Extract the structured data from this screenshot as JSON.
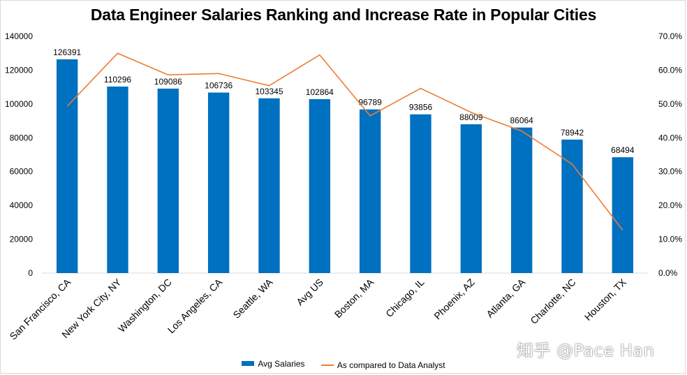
{
  "chart_data": {
    "type": "bar",
    "title": "Data Engineer Salaries Ranking and Increase Rate in Popular Cities",
    "categories": [
      "San Francisco, CA",
      "New York City, NY",
      "Washington, DC",
      "Los Angeles, CA",
      "Seattle, WA",
      "Avg US",
      "Boston, MA",
      "Chicago, IL",
      "Phoenix, AZ",
      "Atlanta, GA",
      "Charlotte, NC",
      "Houston, TX"
    ],
    "series": [
      {
        "name": "Avg Salaries",
        "type": "bar",
        "axis": "left",
        "color": "#0070C0",
        "values": [
          126391,
          110296,
          109086,
          106736,
          103345,
          102864,
          96789,
          93856,
          88009,
          86064,
          78942,
          68494
        ],
        "labels": [
          "126391",
          "110296",
          "109086",
          "106736",
          "103345",
          "102864",
          "96789",
          "93856",
          "88009",
          "86064",
          "78942",
          "68494"
        ]
      },
      {
        "name": "As compared to Data Analyst",
        "type": "line",
        "axis": "right",
        "color": "#ED7D31",
        "values": [
          0.493,
          0.65,
          0.586,
          0.59,
          0.554,
          0.645,
          0.465,
          0.546,
          0.475,
          0.42,
          0.322,
          0.127
        ]
      }
    ],
    "y_left": {
      "min": 0,
      "max": 140000,
      "step": 20000,
      "ticks": [
        "0",
        "20000",
        "40000",
        "60000",
        "80000",
        "100000",
        "120000",
        "140000"
      ]
    },
    "y_right": {
      "min": 0,
      "max": 0.7,
      "step": 0.1,
      "ticks": [
        "0.0%",
        "10.0%",
        "20.0%",
        "30.0%",
        "40.0%",
        "50.0%",
        "60.0%",
        "70.0%"
      ]
    },
    "grid": false,
    "legend_position": "bottom"
  },
  "watermark": "知乎 @Pace Han"
}
